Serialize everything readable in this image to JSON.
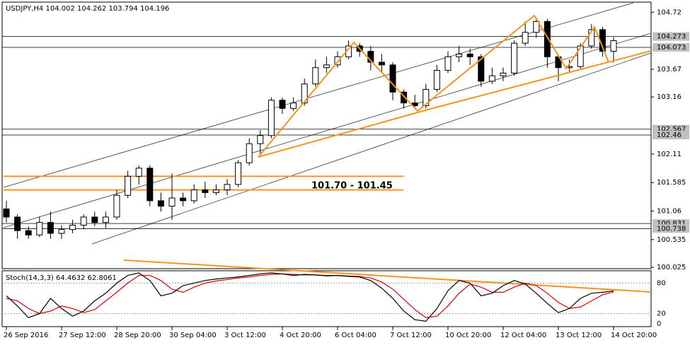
{
  "chart_data": {
    "type": "candlestick",
    "title": "USDJPY,H4  104.002 104.262 103.794 104.196",
    "categories": [
      "26 Sep 2016",
      null,
      null,
      null,
      null,
      "27 Sep 12:00",
      null,
      null,
      null,
      null,
      "28 Sep 20:00",
      null,
      null,
      null,
      null,
      "30 Sep 04:00",
      null,
      null,
      null,
      null,
      "3 Oct 12:00",
      null,
      null,
      null,
      null,
      "4 Oct 20:00",
      null,
      null,
      null,
      null,
      "6 Oct 04:00",
      null,
      null,
      null,
      null,
      "7 Oct 12:00",
      null,
      null,
      null,
      null,
      "10 Oct 20:00",
      null,
      null,
      null,
      null,
      "12 Oct 04:00",
      null,
      null,
      null,
      null,
      "13 Oct 12:00",
      null,
      null,
      null,
      null,
      "14 Oct 20:00"
    ],
    "open": [
      101.1,
      100.95,
      100.7,
      100.62,
      100.85,
      100.65,
      100.72,
      100.8,
      100.95,
      100.85,
      100.95,
      101.35,
      101.7,
      101.85,
      101.25,
      101.15,
      101.3,
      101.25,
      101.45,
      101.4,
      101.45,
      101.55,
      101.95,
      102.3,
      102.45,
      103.1,
      102.95,
      103.05,
      103.4,
      103.7,
      103.75,
      103.9,
      104.1,
      104.0,
      103.8,
      103.75,
      103.25,
      103.05,
      103.0,
      103.3,
      103.65,
      103.9,
      103.95,
      103.9,
      103.45,
      103.55,
      103.6,
      104.15,
      104.35,
      104.55,
      103.9,
      103.7,
      103.72,
      104.1,
      104.4,
      104.002
    ],
    "high": [
      101.25,
      101.0,
      100.78,
      100.95,
      101.05,
      100.8,
      100.9,
      101.0,
      101.05,
      101.05,
      101.45,
      101.8,
      101.9,
      101.9,
      101.4,
      101.75,
      101.4,
      101.55,
      101.6,
      101.55,
      101.65,
      102.0,
      102.4,
      102.55,
      103.15,
      103.15,
      103.15,
      103.5,
      103.85,
      103.9,
      104.0,
      104.2,
      104.15,
      104.1,
      103.95,
      103.8,
      103.3,
      103.2,
      103.4,
      103.75,
      104.0,
      104.1,
      104.05,
      103.95,
      103.7,
      103.7,
      104.2,
      104.55,
      104.62,
      104.6,
      103.95,
      103.85,
      104.15,
      104.5,
      104.45,
      104.262
    ],
    "low": [
      100.85,
      100.55,
      100.55,
      100.58,
      100.55,
      100.55,
      100.65,
      100.72,
      100.78,
      100.75,
      100.9,
      101.3,
      101.55,
      101.15,
      101.05,
      100.9,
      101.15,
      101.2,
      101.3,
      101.35,
      101.35,
      101.5,
      101.9,
      102.1,
      102.4,
      102.85,
      102.9,
      103.0,
      103.35,
      103.6,
      103.7,
      103.85,
      103.9,
      103.65,
      103.6,
      103.1,
      102.95,
      102.95,
      102.95,
      103.25,
      103.6,
      103.8,
      103.75,
      103.35,
      103.4,
      103.45,
      103.55,
      104.1,
      104.25,
      103.7,
      103.45,
      103.6,
      103.68,
      104.05,
      103.9,
      103.794
    ],
    "close": [
      100.95,
      100.7,
      100.62,
      100.85,
      100.65,
      100.72,
      100.8,
      100.95,
      100.85,
      100.95,
      101.35,
      101.7,
      101.85,
      101.25,
      101.15,
      101.3,
      101.25,
      101.45,
      101.4,
      101.45,
      101.55,
      101.95,
      102.3,
      102.45,
      103.1,
      102.95,
      103.05,
      103.4,
      103.7,
      103.75,
      103.9,
      104.1,
      104.0,
      103.8,
      103.75,
      103.25,
      103.05,
      103.0,
      103.3,
      103.65,
      103.9,
      103.95,
      103.9,
      103.45,
      103.55,
      103.6,
      104.15,
      104.35,
      104.55,
      103.9,
      103.7,
      103.72,
      104.1,
      104.4,
      104.0,
      104.196
    ],
    "ylim": [
      100.0,
      104.88
    ],
    "yticks": [
      100.025,
      100.535,
      101.06,
      101.585,
      102.11,
      103.16,
      103.67,
      104.72
    ],
    "levels": [
      104.273,
      104.073,
      102.567,
      102.46,
      100.831,
      100.738
    ],
    "zone": {
      "label": "101.70 - 101.45",
      "top": 101.7,
      "bottom": 101.45,
      "color": "#f7941d"
    },
    "stoch": {
      "label": "Stoch(14,3,3) 64.4632 62.8061",
      "ylim": [
        0,
        100
      ],
      "yticks": [
        0,
        20,
        80
      ],
      "main": [
        55,
        35,
        12,
        20,
        50,
        30,
        15,
        25,
        45,
        60,
        80,
        95,
        100,
        85,
        55,
        60,
        75,
        80,
        85,
        88,
        90,
        92,
        95,
        98,
        100,
        98,
        95,
        97,
        96,
        94,
        95,
        93,
        92,
        85,
        70,
        50,
        25,
        8,
        5,
        30,
        65,
        85,
        80,
        55,
        60,
        75,
        85,
        78,
        60,
        40,
        22,
        30,
        50,
        60,
        62,
        64.4632
      ],
      "signal": [
        50,
        45,
        30,
        20,
        25,
        35,
        30,
        22,
        28,
        45,
        62,
        80,
        95,
        95,
        85,
        68,
        62,
        72,
        80,
        84,
        87,
        90,
        92,
        95,
        97,
        98,
        97,
        96,
        96,
        95,
        95,
        94,
        93,
        90,
        82,
        68,
        48,
        28,
        12,
        15,
        35,
        60,
        78,
        72,
        62,
        62,
        72,
        80,
        75,
        60,
        42,
        30,
        33,
        45,
        57,
        62.8061
      ],
      "main_color": "#000000",
      "signal_color": "#e00000"
    }
  }
}
